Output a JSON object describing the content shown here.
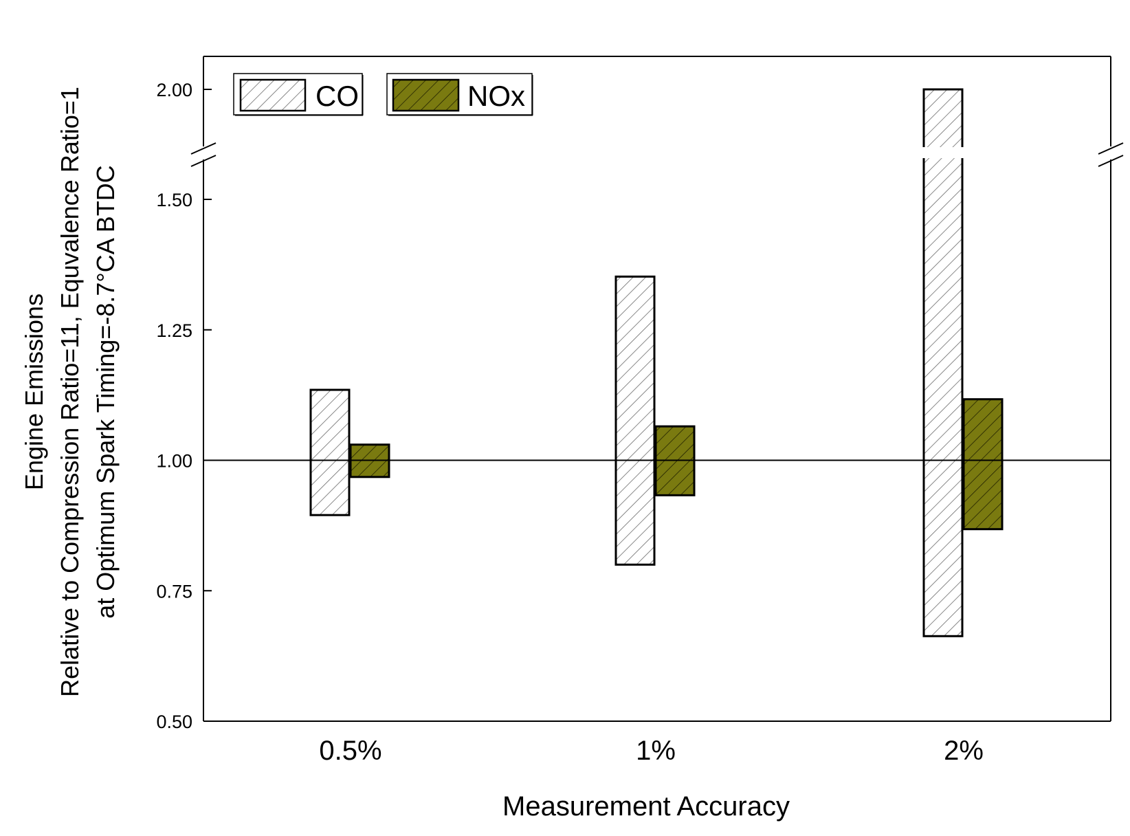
{
  "chart_data": {
    "type": "floating-bar",
    "title": "",
    "xlabel": "Measurement Accuracy",
    "ylabel_lines": [
      "Engine Emissions",
      "Relative to Compression Ratio=11, Equvalence Ratio=1",
      "at Optimum Spark Timing=-8.7°CA BTDC"
    ],
    "categories": [
      "0.5%",
      "1%",
      "2%"
    ],
    "yticks": [
      "0.50",
      "0.75",
      "1.00",
      "1.25",
      "1.50",
      "2.00"
    ],
    "ylim": [
      0.5,
      2.0
    ],
    "y_axis_break": [
      1.6,
      1.95
    ],
    "reference_line": 1.0,
    "legend_position": "top-left",
    "series": [
      {
        "name": "CO",
        "color": "#ffffff",
        "hatch_color": "#555555",
        "low": [
          0.895,
          0.8,
          0.663
        ],
        "high": [
          1.135,
          1.352,
          2.0
        ]
      },
      {
        "name": "NOx",
        "color": "#7a7a10",
        "hatch_color": "#1a1a00",
        "low": [
          0.968,
          0.933,
          0.868
        ],
        "high": [
          1.03,
          1.065,
          1.117
        ]
      }
    ]
  }
}
